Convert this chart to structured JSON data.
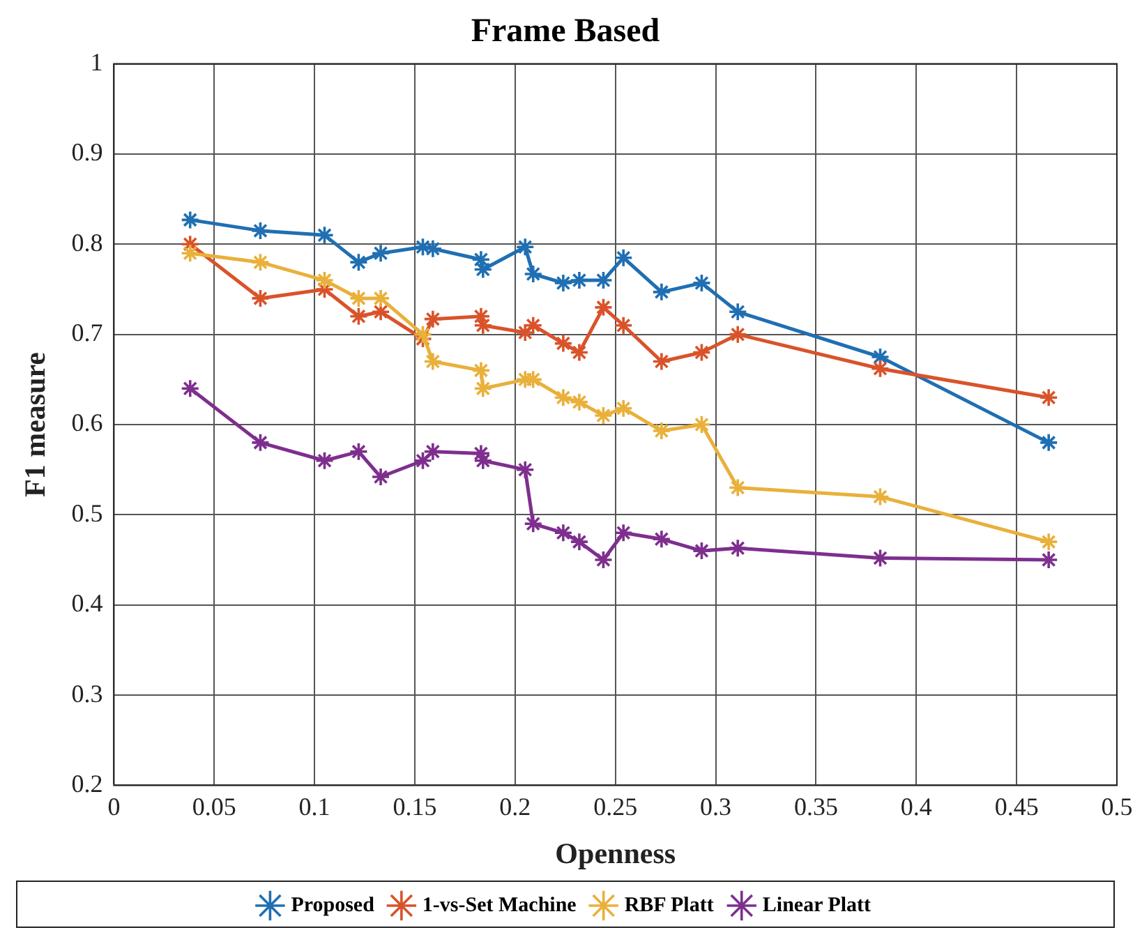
{
  "chart_data": {
    "type": "line",
    "title": "Frame Based",
    "xlabel": "Openness",
    "ylabel": "F1 measure",
    "x": [
      0.038,
      0.073,
      0.105,
      0.122,
      0.133,
      0.154,
      0.159,
      0.183,
      0.184,
      0.205,
      0.209,
      0.224,
      0.232,
      0.244,
      0.254,
      0.273,
      0.293,
      0.311,
      0.382,
      0.466
    ],
    "series": [
      {
        "name": "Proposed",
        "color": "#1f6fb2",
        "values": [
          0.827,
          0.815,
          0.81,
          0.78,
          0.79,
          0.797,
          0.795,
          0.783,
          0.772,
          0.797,
          0.767,
          0.757,
          0.76,
          0.76,
          0.785,
          0.747,
          0.757,
          0.725,
          0.675,
          0.58
        ]
      },
      {
        "name": "1-vs-Set Machine",
        "color": "#d9532a",
        "values": [
          0.8,
          0.74,
          0.75,
          0.72,
          0.725,
          0.695,
          0.717,
          0.72,
          0.71,
          0.702,
          0.71,
          0.69,
          0.68,
          0.73,
          0.71,
          0.67,
          0.68,
          0.7,
          0.662,
          0.63
        ]
      },
      {
        "name": "RBF Platt",
        "color": "#e9b03a",
        "values": [
          0.79,
          0.78,
          0.76,
          0.74,
          0.74,
          0.7,
          0.67,
          0.66,
          0.64,
          0.65,
          0.65,
          0.63,
          0.625,
          0.61,
          0.618,
          0.593,
          0.6,
          0.53,
          0.52,
          0.47
        ]
      },
      {
        "name": "Linear Platt",
        "color": "#7e2f8e",
        "values": [
          0.64,
          0.58,
          0.56,
          0.57,
          0.542,
          0.56,
          0.57,
          0.568,
          0.56,
          0.55,
          0.49,
          0.48,
          0.47,
          0.45,
          0.48,
          0.473,
          0.46,
          0.463,
          0.452,
          0.45
        ]
      }
    ],
    "xlim": [
      0,
      0.5
    ],
    "xticks": [
      0,
      0.05,
      0.1,
      0.15,
      0.2,
      0.25,
      0.3,
      0.35,
      0.4,
      0.45,
      0.5
    ],
    "ylim": [
      0.2,
      1
    ],
    "yticks": [
      0.2,
      0.3,
      0.4,
      0.5,
      0.6,
      0.7,
      0.8,
      0.9,
      1
    ],
    "grid": true,
    "legend": "bottom",
    "marker": "cross",
    "line_style": "solid"
  }
}
